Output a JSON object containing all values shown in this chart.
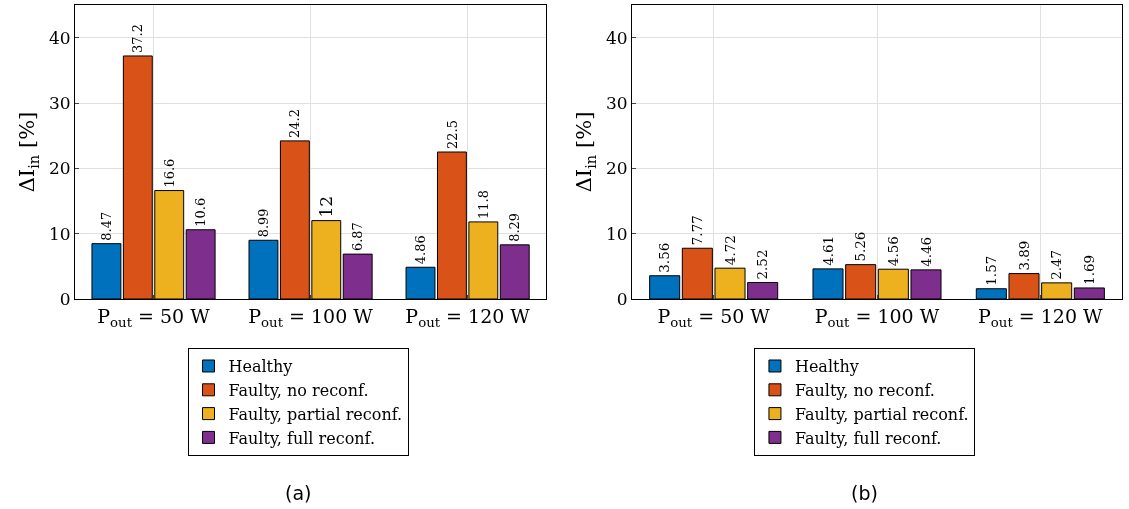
{
  "chart_data": [
    {
      "type": "bar",
      "categories": [
        "P$_{out}$ = 50 W",
        "P$_{out}$ = 100 W",
        "P$_{out}$ = 120 W"
      ],
      "ylabel": "ΔI$_{in}$ [%]",
      "ylim": [
        0,
        45
      ],
      "yticks": [
        0,
        10,
        20,
        30,
        40
      ],
      "grid": true,
      "legend": "bottom",
      "data_labels": true,
      "annotations": [
        "(a)"
      ],
      "series": [
        {
          "name": "Healthy",
          "color": "#0072bd",
          "values": [
            8.47,
            8.99,
            4.86
          ]
        },
        {
          "name": "Faulty, no reconf.",
          "color": "#d95319",
          "values": [
            37.2,
            24.2,
            22.5
          ]
        },
        {
          "name": "Faulty, partial reconf.",
          "color": "#edb120",
          "values": [
            16.6,
            12,
            11.8
          ]
        },
        {
          "name": "Faulty, full reconf.",
          "color": "#7e2f8e",
          "values": [
            10.6,
            6.87,
            8.29
          ]
        }
      ]
    },
    {
      "type": "bar",
      "categories": [
        "P$_{out}$ = 50 W",
        "P$_{out}$ = 100 W",
        "P$_{out}$ = 120 W"
      ],
      "ylabel": "ΔI$_{in}$ [%]",
      "ylim": [
        0,
        45
      ],
      "yticks": [
        0,
        10,
        20,
        30,
        40
      ],
      "grid": true,
      "legend": "bottom",
      "data_labels": true,
      "annotations": [
        "(b)"
      ],
      "series": [
        {
          "name": "Healthy",
          "color": "#0072bd",
          "values": [
            3.56,
            4.61,
            1.57
          ]
        },
        {
          "name": "Faulty, no reconf.",
          "color": "#d95319",
          "values": [
            7.77,
            5.26,
            3.89
          ]
        },
        {
          "name": "Faulty, partial reconf.",
          "color": "#edb120",
          "values": [
            4.72,
            4.56,
            2.47
          ]
        },
        {
          "name": "Faulty, full reconf.",
          "color": "#7e2f8e",
          "values": [
            2.52,
            4.46,
            1.69
          ]
        }
      ]
    }
  ]
}
